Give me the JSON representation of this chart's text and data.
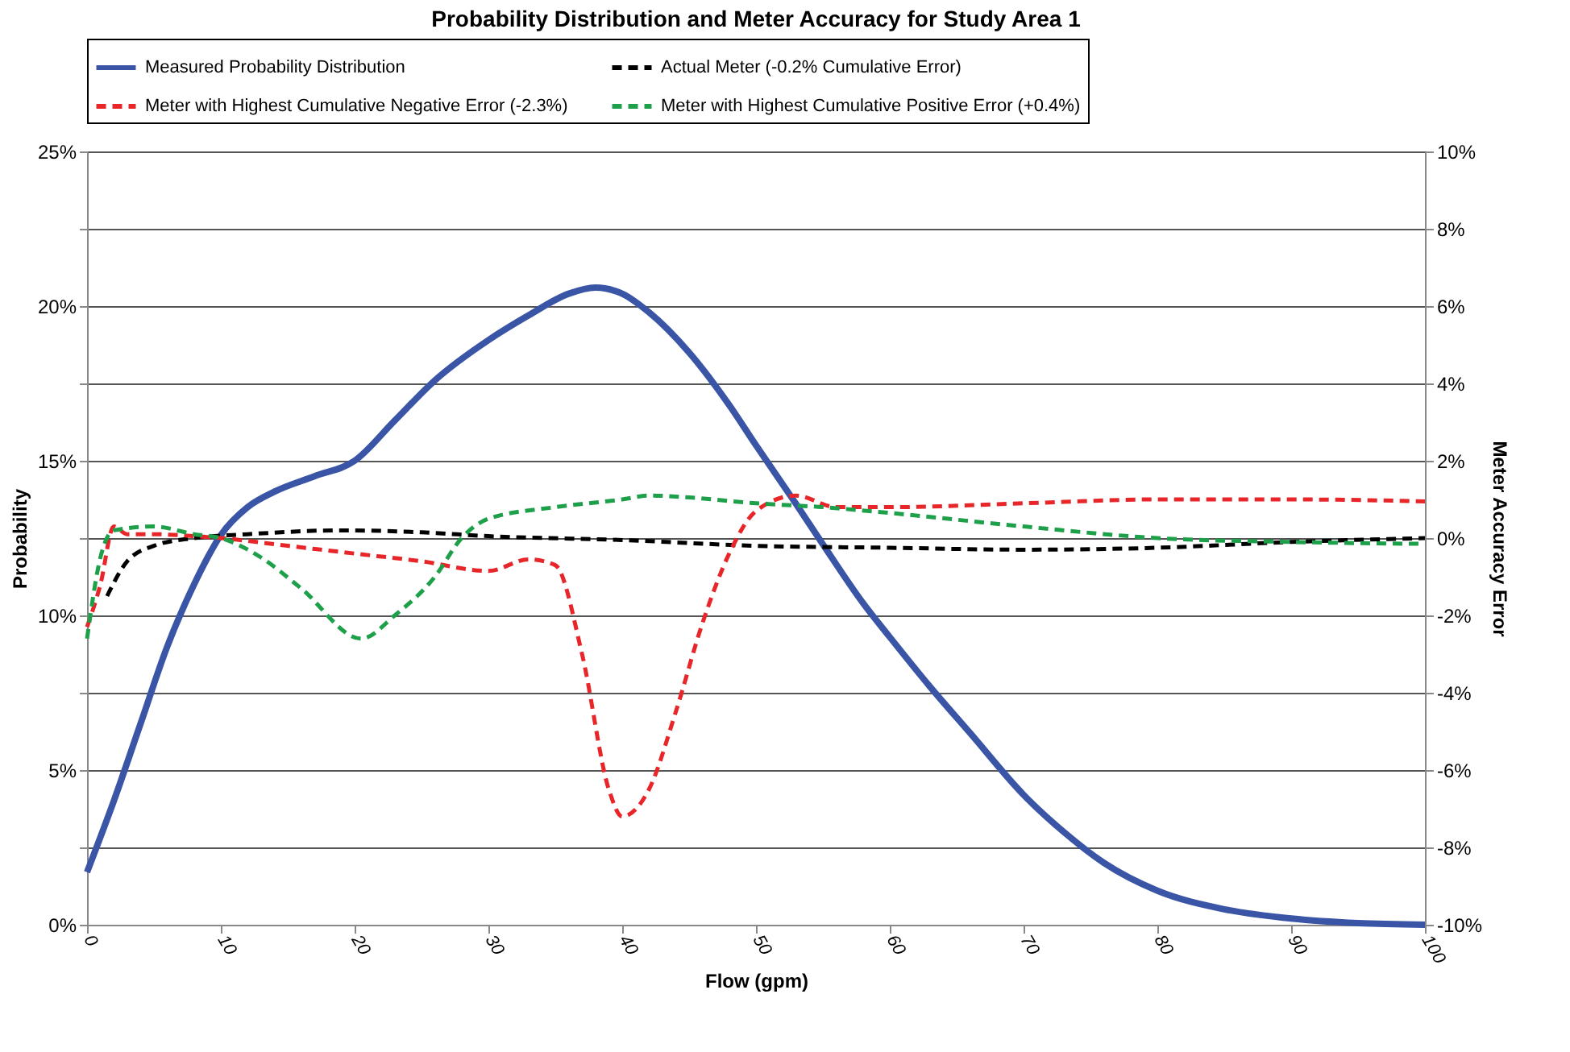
{
  "chart_data": {
    "type": "line",
    "title": "Probability Distribution and Meter Accuracy for Study Area 1",
    "xlabel": "Flow (gpm)",
    "ylabel": "Probability",
    "y2label": "Meter Accuracy Error",
    "xlim": [
      0,
      100
    ],
    "xticks": [
      0,
      10,
      20,
      30,
      40,
      50,
      60,
      70,
      80,
      90,
      100
    ],
    "ylim": [
      0,
      25
    ],
    "yticks": [
      {
        "value": 0,
        "label": "0%"
      },
      {
        "value": 2.5,
        "label": null
      },
      {
        "value": 5,
        "label": "5%"
      },
      {
        "value": 7.5,
        "label": null
      },
      {
        "value": 10,
        "label": "10%"
      },
      {
        "value": 12.5,
        "label": null
      },
      {
        "value": 15,
        "label": "15%"
      },
      {
        "value": 17.5,
        "label": null
      },
      {
        "value": 20,
        "label": "20%"
      },
      {
        "value": 22.5,
        "label": null
      },
      {
        "value": 25,
        "label": "25%"
      }
    ],
    "y2lim": [
      -10,
      10
    ],
    "y2ticks": [
      {
        "value": -10,
        "label": "-10%"
      },
      {
        "value": -8,
        "label": "-8%"
      },
      {
        "value": -6,
        "label": "-6%"
      },
      {
        "value": -4,
        "label": "-4%"
      },
      {
        "value": -2,
        "label": "-2%"
      },
      {
        "value": 0,
        "label": "0%"
      },
      {
        "value": 2,
        "label": "2%"
      },
      {
        "value": 4,
        "label": "4%"
      },
      {
        "value": 6,
        "label": "6%"
      },
      {
        "value": 8,
        "label": "8%"
      },
      {
        "value": 10,
        "label": "10%"
      }
    ],
    "grid": "y",
    "legend": "top",
    "marker": "none",
    "series": [
      {
        "name": "Measured Probability Distribution",
        "color": "#3a55a6",
        "line_style": "solid",
        "x": [
          0,
          2,
          4,
          6,
          8,
          10,
          12,
          14,
          17,
          20,
          23,
          26,
          30,
          33,
          36,
          38,
          40,
          42,
          45,
          48,
          50,
          53,
          55,
          58,
          60,
          63,
          66,
          70,
          73,
          76,
          80,
          85,
          90,
          95,
          100
        ],
        "values": [
          1.7,
          4,
          6.5,
          9,
          11,
          12.6,
          13.5,
          14,
          14.5,
          15,
          16.3,
          17.6,
          18.9,
          19.7,
          20.4,
          20.6,
          20.4,
          19.8,
          18.5,
          16.8,
          15.5,
          13.6,
          12.3,
          10.4,
          9.3,
          7.7,
          6.2,
          4.2,
          3,
          2,
          1.1,
          0.5,
          0.2,
          0.05,
          0
        ]
      },
      {
        "name": "Actual Meter (-0.2% Cumulative Error)",
        "color": "#000000",
        "line_style": "dashed",
        "axis": "y2",
        "x": [
          1.5,
          3,
          5,
          8,
          12,
          19,
          25,
          30,
          40,
          50,
          60,
          70,
          80,
          90,
          100
        ],
        "values": [
          -1.5,
          -0.6,
          -0.2,
          0,
          0.1,
          0.2,
          0.15,
          0.05,
          -0.05,
          -0.2,
          -0.25,
          -0.3,
          -0.25,
          -0.1,
          0
        ]
      },
      {
        "name": "Meter with Highest Cumulative Negative Error (-2.3%)",
        "color": "#e8262a",
        "line_style": "dashed",
        "axis": "y2",
        "x": [
          0,
          1,
          2,
          3,
          5,
          8,
          10,
          15,
          20,
          25,
          30,
          33,
          35,
          37,
          39,
          40,
          42,
          44,
          46,
          48,
          50,
          53,
          56,
          60,
          70,
          80,
          90,
          100
        ],
        "values": [
          -2.3,
          -1.2,
          0.3,
          0.1,
          0.1,
          0.05,
          0,
          -0.2,
          -0.4,
          -0.6,
          -0.85,
          -0.55,
          -0.7,
          -3,
          -6.5,
          -7.2,
          -6.5,
          -4.5,
          -2.2,
          -0.4,
          0.7,
          1.1,
          0.8,
          0.8,
          0.9,
          1,
          1,
          0.95
        ]
      },
      {
        "name": "Meter with Highest Cumulative Positive Error (+0.4%)",
        "color": "#1ea04a",
        "line_style": "dashed",
        "axis": "y2",
        "x": [
          0,
          1,
          2,
          5,
          8,
          10,
          13,
          16,
          20.5,
          23,
          26,
          28,
          30,
          35,
          40,
          42,
          45,
          50,
          55,
          60,
          70,
          80,
          90,
          100
        ],
        "values": [
          -2.6,
          -0.5,
          0.2,
          0.3,
          0.1,
          0,
          -0.5,
          -1.3,
          -2.6,
          -2,
          -1,
          0,
          0.5,
          0.8,
          1,
          1.1,
          1.05,
          0.9,
          0.8,
          0.65,
          0.3,
          0,
          -0.1,
          -0.15
        ]
      }
    ]
  }
}
